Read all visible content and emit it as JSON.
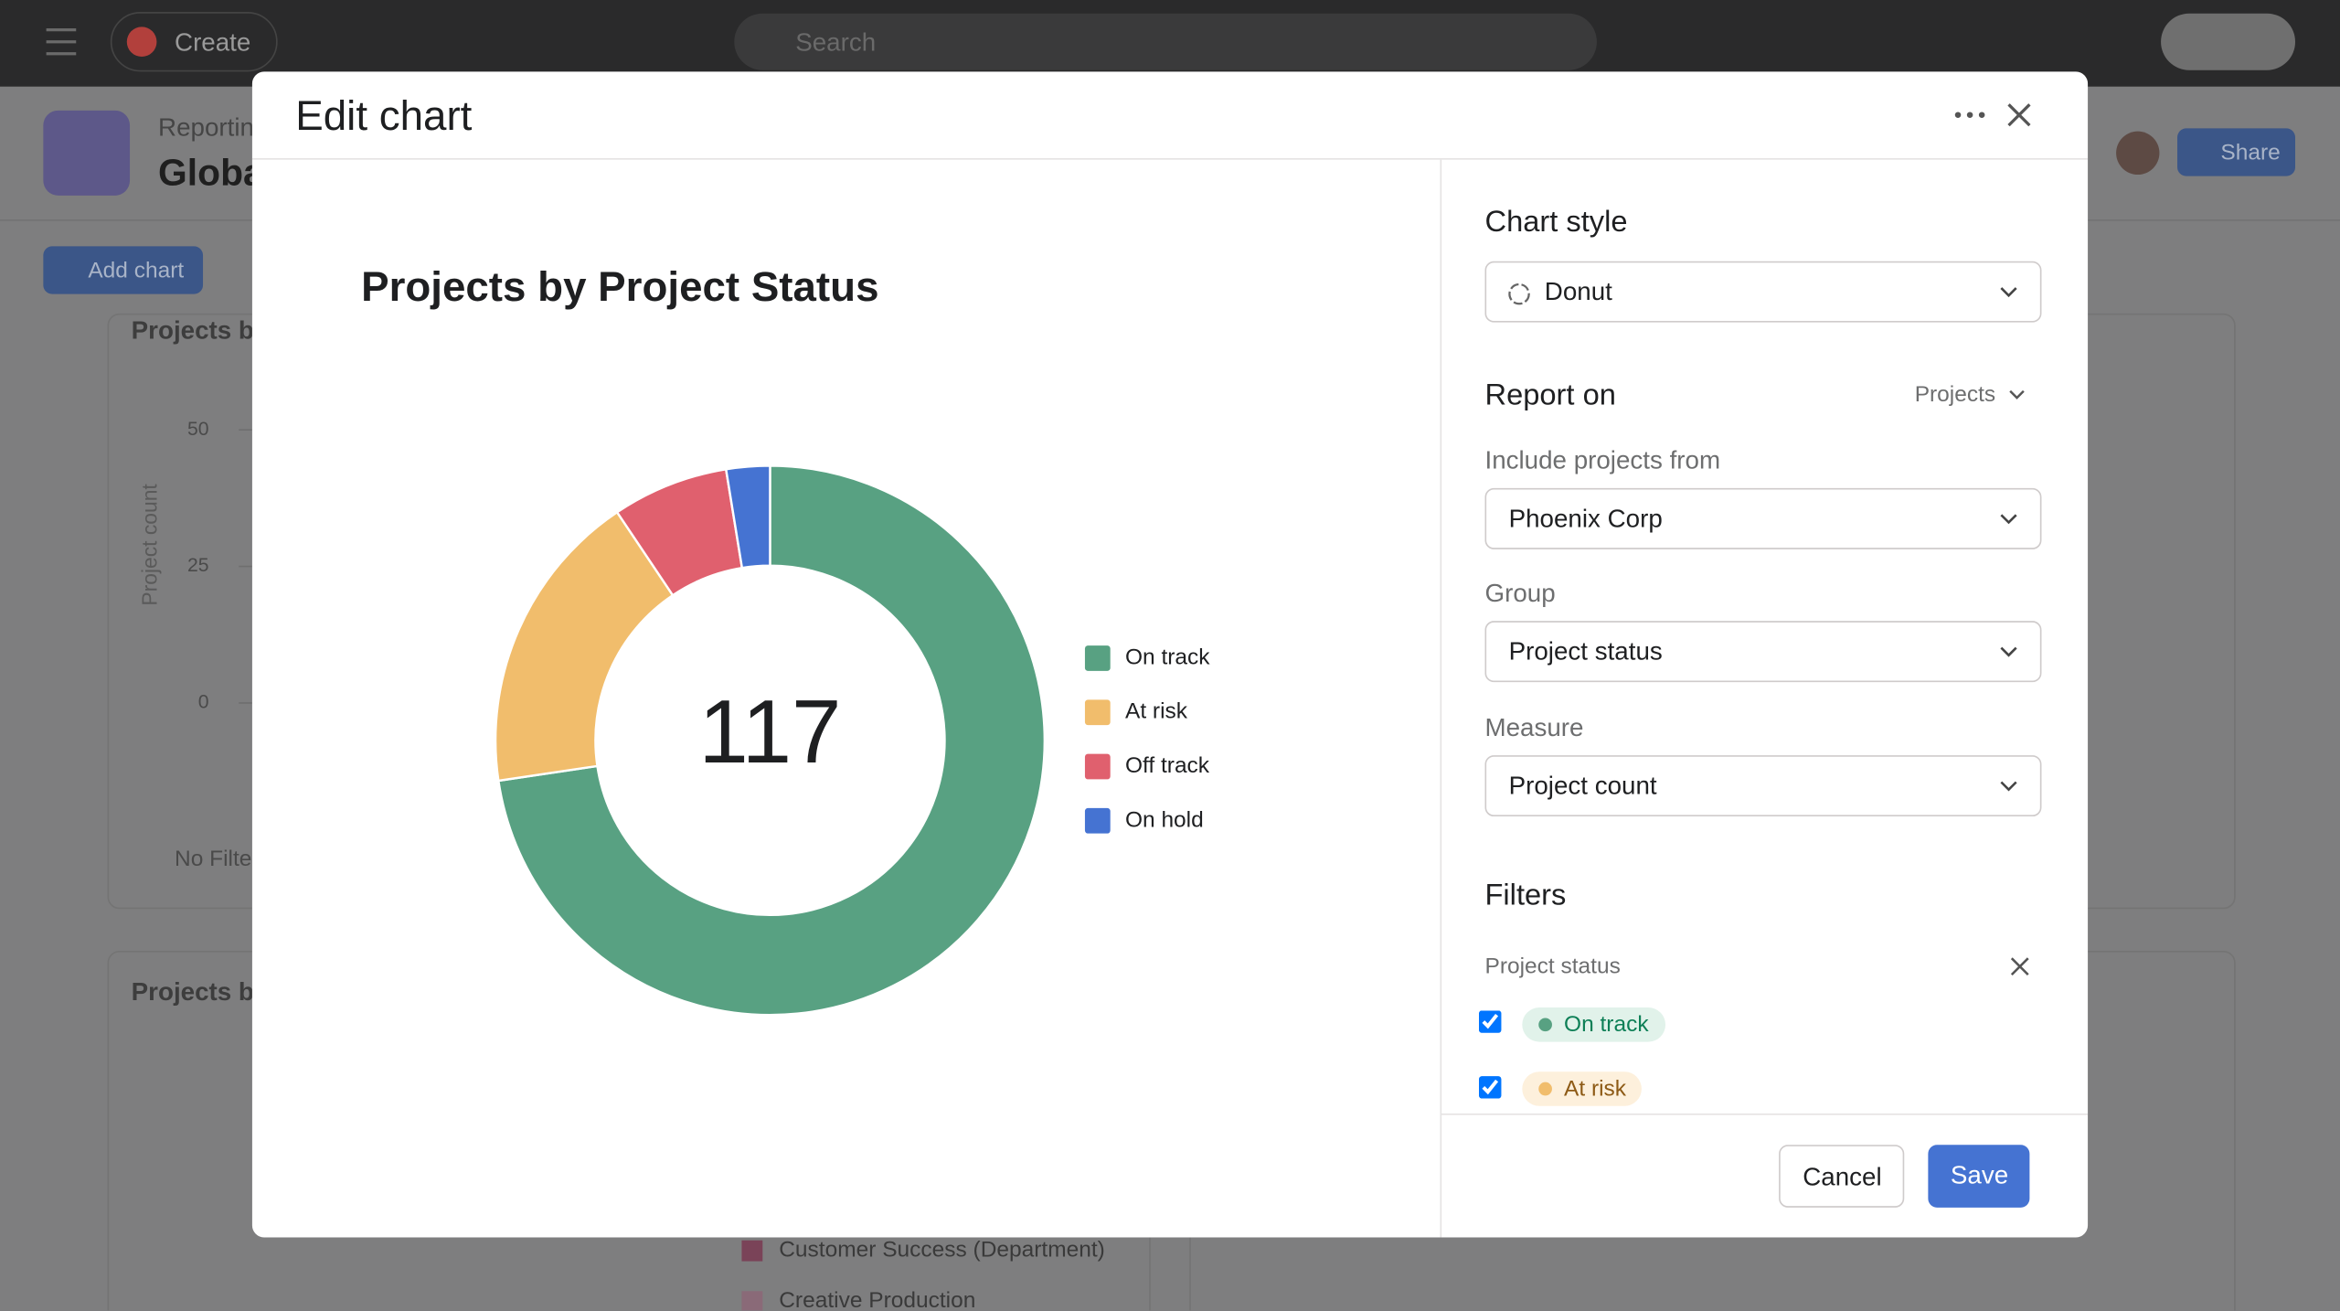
{
  "background": {
    "topbar": {
      "create": "Create",
      "search": "Search"
    },
    "header": {
      "breadcrumb": "Reporting",
      "title": "Globa",
      "share": "Share"
    },
    "add_chart": "Add chart",
    "left_chart": {
      "title": "Projects b",
      "ylabel": "Project count",
      "ylim": [
        0,
        50
      ],
      "yticks": [
        0,
        25,
        50
      ],
      "filter": "No Filte"
    },
    "second_chart": {
      "title": "Projects b",
      "legend": [
        "Customer Success (Department)",
        "Creative Production"
      ]
    }
  },
  "modal": {
    "title": "Edit chart",
    "panel": {
      "chart_style": {
        "label": "Chart style",
        "value": "Donut"
      },
      "report_on": {
        "label": "Report on",
        "value": "Projects"
      },
      "include": {
        "label": "Include projects from",
        "value": "Phoenix Corp"
      },
      "group": {
        "label": "Group",
        "value": "Project status"
      },
      "measure": {
        "label": "Measure",
        "value": "Project count"
      },
      "filters": {
        "label": "Filters",
        "field": "Project status",
        "options": [
          "On track",
          "At risk"
        ]
      }
    },
    "buttons": {
      "cancel": "Cancel",
      "save": "Save"
    }
  },
  "chart_data": {
    "type": "donut",
    "title": "Projects by Project Status",
    "total": 117,
    "categories": [
      "On track",
      "At risk",
      "Off track",
      "On hold"
    ],
    "values": [
      85,
      21,
      8,
      3
    ],
    "colors": [
      "#58a182",
      "#f1bd6c",
      "#e0606e",
      "#4573d2"
    ]
  }
}
